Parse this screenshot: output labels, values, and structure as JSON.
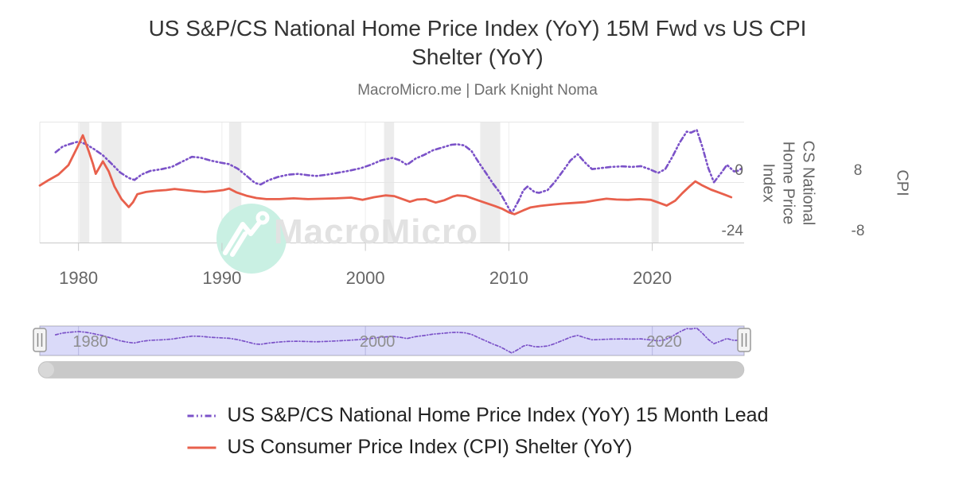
{
  "title": {
    "text": "US S&P/CS National Home Price Index (YoY) 15M Fwd vs US CPI Shelter (YoY)",
    "lines": [
      "US S&P/CS National Home Price Index (YoY) 15M Fwd vs US CPI",
      "Shelter (YoY)"
    ]
  },
  "subtitle": "MacroMicro.me | Dark Knight Noma",
  "watermark": {
    "text": "MacroMicro",
    "icon": "macromicro-logo-icon"
  },
  "colors": {
    "purple": "#7B52C8",
    "red": "#E8604C",
    "grid": "#e6e6e6",
    "axis_line": "#c9c9c9",
    "tick": "#c9c9c9",
    "recession_band": "#ececec",
    "nav_mask": "rgba(140,140,235,0.32)",
    "nav_outline": "#b3b3b3",
    "nav_grid": "rgba(100,100,170,0.3)",
    "scrollbar": "#c9c9c9",
    "scrollbar_cap": "#d8d8d8",
    "handle_fill": "#f4f4f4",
    "handle_border": "#999999",
    "watermark_circle": "#c9f0e3",
    "watermark_text": "#e2e2e2"
  },
  "chart_data": {
    "type": "line",
    "title": "US S&P/CS National Home Price Index (YoY) 15M Fwd vs US CPI Shelter (YoY)",
    "x_domain": [
      1977.3,
      2026.4
    ],
    "x_ticks": [
      1980,
      1990,
      2000,
      2010,
      2020
    ],
    "grid": true,
    "legend_position": "bottom",
    "recession_bands": [
      [
        1980.05,
        1980.75
      ],
      [
        1981.6,
        1983.0
      ],
      [
        1990.5,
        1991.35
      ],
      [
        2001.3,
        2002.0
      ],
      [
        2008.0,
        2009.4
      ],
      [
        2019.95,
        2020.45
      ]
    ],
    "y_axes": [
      {
        "id": "cs",
        "title": "CS National Home Price Index",
        "title_lines": [
          "CS National",
          "Home Price",
          "Index"
        ],
        "range": [
          -24,
          24
        ],
        "tick_values": [
          0,
          -24
        ],
        "tick_labels": [
          "0",
          "-24"
        ],
        "side": "right"
      },
      {
        "id": "cpi",
        "title": "CPI",
        "title_lines": [
          "CPI"
        ],
        "range": [
          -8,
          24
        ],
        "tick_values": [
          8,
          -8
        ],
        "tick_labels": [
          "8",
          "-8"
        ],
        "side": "far-right"
      }
    ],
    "series": [
      {
        "name": "US S&P/CS National Home Price Index (YoY) 15 Month Lead",
        "axis": "cs",
        "color": "#7B52C8",
        "style": "dash-dot",
        "points": [
          [
            1978.4,
            12.0
          ],
          [
            1978.9,
            14.3
          ],
          [
            1979.4,
            15.3
          ],
          [
            1980.0,
            16.3
          ],
          [
            1980.5,
            15.3
          ],
          [
            1981.1,
            13.2
          ],
          [
            1981.7,
            10.8
          ],
          [
            1982.3,
            7.5
          ],
          [
            1982.9,
            4.0
          ],
          [
            1983.5,
            1.8
          ],
          [
            1983.9,
            1.0
          ],
          [
            1984.4,
            3.2
          ],
          [
            1985.0,
            4.6
          ],
          [
            1985.8,
            5.3
          ],
          [
            1986.5,
            6.2
          ],
          [
            1987.2,
            8.2
          ],
          [
            1987.9,
            10.2
          ],
          [
            1988.5,
            9.9
          ],
          [
            1989.2,
            8.7
          ],
          [
            1989.9,
            7.9
          ],
          [
            1990.5,
            7.3
          ],
          [
            1991.1,
            5.5
          ],
          [
            1991.7,
            2.7
          ],
          [
            1992.3,
            -0.2
          ],
          [
            1992.7,
            -0.8
          ],
          [
            1993.2,
            0.8
          ],
          [
            1993.9,
            2.2
          ],
          [
            1994.6,
            3.1
          ],
          [
            1995.3,
            3.4
          ],
          [
            1996.0,
            2.9
          ],
          [
            1996.6,
            2.6
          ],
          [
            1997.3,
            3.1
          ],
          [
            1998.1,
            3.9
          ],
          [
            1998.9,
            4.7
          ],
          [
            1999.7,
            5.7
          ],
          [
            2000.4,
            7.1
          ],
          [
            2001.1,
            8.8
          ],
          [
            2001.9,
            9.8
          ],
          [
            2002.4,
            8.8
          ],
          [
            2002.9,
            7.0
          ],
          [
            2003.5,
            9.5
          ],
          [
            2004.1,
            11.0
          ],
          [
            2004.7,
            12.8
          ],
          [
            2005.3,
            13.8
          ],
          [
            2006.0,
            15.0
          ],
          [
            2006.4,
            15.2
          ],
          [
            2006.9,
            14.7
          ],
          [
            2007.4,
            12.5
          ],
          [
            2007.9,
            8.0
          ],
          [
            2008.4,
            3.8
          ],
          [
            2008.9,
            -0.5
          ],
          [
            2009.4,
            -4.2
          ],
          [
            2009.9,
            -9.3
          ],
          [
            2010.2,
            -12.3
          ],
          [
            2010.7,
            -7.0
          ],
          [
            2011.0,
            -3.2
          ],
          [
            2011.3,
            -1.6
          ],
          [
            2011.8,
            -3.8
          ],
          [
            2012.1,
            -4.1
          ],
          [
            2012.7,
            -3.0
          ],
          [
            2013.2,
            0.2
          ],
          [
            2013.8,
            4.8
          ],
          [
            2014.3,
            8.8
          ],
          [
            2014.8,
            11.2
          ],
          [
            2015.3,
            8.0
          ],
          [
            2015.8,
            5.3
          ],
          [
            2016.4,
            5.7
          ],
          [
            2017.1,
            6.2
          ],
          [
            2017.9,
            6.4
          ],
          [
            2018.6,
            6.2
          ],
          [
            2019.2,
            6.5
          ],
          [
            2019.8,
            5.3
          ],
          [
            2020.4,
            3.8
          ],
          [
            2020.9,
            5.3
          ],
          [
            2021.4,
            10.2
          ],
          [
            2021.9,
            15.8
          ],
          [
            2022.4,
            20.2
          ],
          [
            2022.7,
            19.8
          ],
          [
            2023.1,
            20.9
          ],
          [
            2023.5,
            14.0
          ],
          [
            2023.9,
            5.8
          ],
          [
            2024.3,
            0.1
          ],
          [
            2024.8,
            3.8
          ],
          [
            2025.2,
            7.0
          ],
          [
            2025.7,
            4.4
          ],
          [
            2026.0,
            4.7
          ],
          [
            2026.2,
            5.5
          ]
        ]
      },
      {
        "name": "US Consumer Price Index (CPI) Shelter (YoY)",
        "axis": "cpi",
        "color": "#E8604C",
        "style": "solid",
        "points": [
          [
            1977.3,
            7.2
          ],
          [
            1977.9,
            8.6
          ],
          [
            1978.6,
            10.1
          ],
          [
            1979.3,
            12.6
          ],
          [
            1979.9,
            17.2
          ],
          [
            1980.3,
            20.5
          ],
          [
            1980.7,
            16.4
          ],
          [
            1981.0,
            13.0
          ],
          [
            1981.2,
            10.3
          ],
          [
            1981.7,
            13.6
          ],
          [
            1982.1,
            11.0
          ],
          [
            1982.5,
            7.0
          ],
          [
            1983.0,
            3.6
          ],
          [
            1983.5,
            1.5
          ],
          [
            1983.8,
            2.8
          ],
          [
            1984.1,
            4.9
          ],
          [
            1984.7,
            5.5
          ],
          [
            1985.4,
            5.8
          ],
          [
            1986.1,
            6.0
          ],
          [
            1986.7,
            6.3
          ],
          [
            1987.4,
            6.0
          ],
          [
            1988.1,
            5.7
          ],
          [
            1988.8,
            5.5
          ],
          [
            1989.5,
            5.7
          ],
          [
            1990.1,
            6.0
          ],
          [
            1990.5,
            6.4
          ],
          [
            1991.0,
            5.4
          ],
          [
            1991.7,
            4.5
          ],
          [
            1992.4,
            3.9
          ],
          [
            1993.1,
            3.6
          ],
          [
            1994.0,
            3.6
          ],
          [
            1995.0,
            3.8
          ],
          [
            1996.0,
            3.6
          ],
          [
            1997.0,
            3.7
          ],
          [
            1998.0,
            3.8
          ],
          [
            1999.0,
            4.0
          ],
          [
            1999.8,
            3.4
          ],
          [
            2000.6,
            4.1
          ],
          [
            2001.4,
            4.6
          ],
          [
            2002.0,
            4.4
          ],
          [
            2002.6,
            3.6
          ],
          [
            2003.1,
            2.9
          ],
          [
            2003.6,
            3.5
          ],
          [
            2004.2,
            3.6
          ],
          [
            2004.9,
            2.7
          ],
          [
            2005.5,
            3.3
          ],
          [
            2006.1,
            4.3
          ],
          [
            2006.4,
            4.6
          ],
          [
            2007.0,
            4.4
          ],
          [
            2007.7,
            3.5
          ],
          [
            2008.3,
            2.7
          ],
          [
            2009.0,
            1.8
          ],
          [
            2009.5,
            1.1
          ],
          [
            2010.0,
            0.1
          ],
          [
            2010.4,
            -0.4
          ],
          [
            2011.0,
            0.6
          ],
          [
            2011.5,
            1.4
          ],
          [
            2012.2,
            1.8
          ],
          [
            2012.9,
            2.1
          ],
          [
            2013.7,
            2.4
          ],
          [
            2014.5,
            2.6
          ],
          [
            2015.3,
            2.8
          ],
          [
            2016.1,
            3.3
          ],
          [
            2016.8,
            3.7
          ],
          [
            2017.5,
            3.5
          ],
          [
            2018.3,
            3.4
          ],
          [
            2019.1,
            3.6
          ],
          [
            2019.9,
            3.4
          ],
          [
            2020.5,
            2.6
          ],
          [
            2021.0,
            1.9
          ],
          [
            2021.6,
            3.2
          ],
          [
            2022.1,
            5.2
          ],
          [
            2022.6,
            7.0
          ],
          [
            2023.0,
            8.3
          ],
          [
            2023.5,
            7.2
          ],
          [
            2024.1,
            6.1
          ],
          [
            2024.6,
            5.4
          ],
          [
            2025.1,
            4.7
          ],
          [
            2025.5,
            4.1
          ]
        ]
      }
    ]
  },
  "navigator": {
    "x_labels": [
      1980,
      2000,
      2020
    ],
    "series_ref": 0
  },
  "legend": {
    "items": [
      {
        "series": 0
      },
      {
        "series": 1
      }
    ]
  }
}
